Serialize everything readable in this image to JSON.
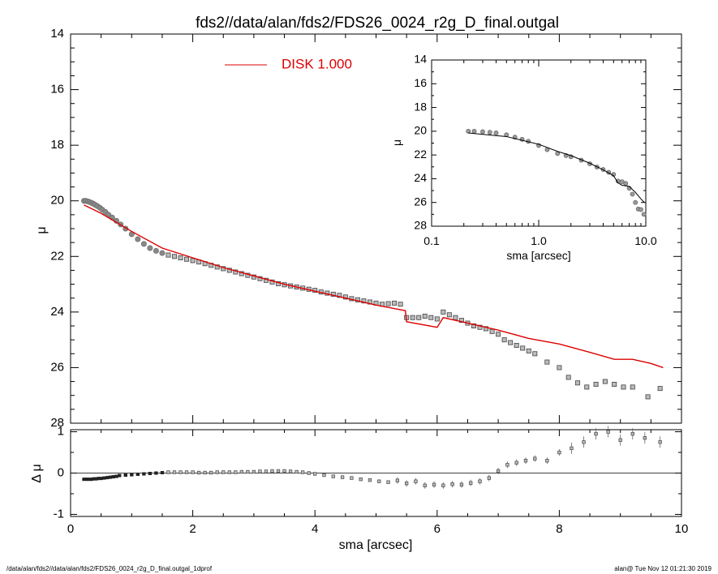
{
  "title": "fds2//data/alan/fds2/FDS26_0024_r2g_D_final.outgal",
  "footer_left": "/data/alan/fds2//data/alan/fds2/FDS26_0024_r2g_D_final.outgal_1dprof",
  "footer_right": "alan@  Tue Nov 12 01:21:30 2019",
  "colors": {
    "model": "#dd0000",
    "data": "#555555",
    "axes": "#000000"
  },
  "chart_data": [
    {
      "type": "scatter",
      "panel": "main",
      "xlabel": "",
      "ylabel": "μ",
      "xlim": [
        0,
        10
      ],
      "ylim": [
        28,
        14
      ],
      "y_inverted": true,
      "y_ticks": [
        14,
        16,
        18,
        20,
        22,
        24,
        26,
        28
      ],
      "legend": {
        "position": "top-center",
        "label": "DISK  1.000",
        "color": "#dd0000"
      },
      "series": [
        {
          "role": "observed",
          "x": [
            0.22,
            0.25,
            0.28,
            0.31,
            0.34,
            0.37,
            0.4,
            0.44,
            0.48,
            0.52,
            0.57,
            0.62,
            0.68,
            0.75,
            0.82,
            0.9,
            1.0,
            1.1,
            1.2,
            1.3,
            1.4,
            1.5,
            1.6,
            1.7,
            1.8,
            1.9,
            2.0,
            2.1,
            2.2,
            2.3,
            2.4,
            2.5,
            2.6,
            2.7,
            2.8,
            2.9,
            3.0,
            3.1,
            3.2,
            3.3,
            3.4,
            3.5,
            3.6,
            3.7,
            3.8,
            3.9,
            4.0,
            4.1,
            4.2,
            4.3,
            4.4,
            4.5,
            4.6,
            4.7,
            4.8,
            4.9,
            5.0,
            5.1,
            5.2,
            5.3,
            5.4,
            5.5,
            5.6,
            5.7,
            5.8,
            5.9,
            6.0,
            6.1,
            6.2,
            6.3,
            6.4,
            6.5,
            6.6,
            6.7,
            6.8,
            6.9,
            7.0,
            7.1,
            7.2,
            7.3,
            7.4,
            7.5,
            7.6,
            7.8,
            8.0,
            8.15,
            8.3,
            8.45,
            8.6,
            8.75,
            8.9,
            9.05,
            9.2,
            9.45,
            9.65
          ],
          "y": [
            20.0,
            20.0,
            20.02,
            20.04,
            20.07,
            20.1,
            20.14,
            20.19,
            20.25,
            20.32,
            20.4,
            20.5,
            20.6,
            20.72,
            20.85,
            21.0,
            21.2,
            21.38,
            21.55,
            21.7,
            21.8,
            21.88,
            21.95,
            22.0,
            22.05,
            22.1,
            22.15,
            22.2,
            22.26,
            22.32,
            22.38,
            22.44,
            22.5,
            22.56,
            22.62,
            22.68,
            22.74,
            22.8,
            22.86,
            22.92,
            22.98,
            23.02,
            23.06,
            23.1,
            23.14,
            23.18,
            23.22,
            23.28,
            23.32,
            23.36,
            23.4,
            23.46,
            23.52,
            23.56,
            23.6,
            23.64,
            23.68,
            23.72,
            23.7,
            23.68,
            23.72,
            24.2,
            24.2,
            24.2,
            24.15,
            24.2,
            24.25,
            24.0,
            24.1,
            24.2,
            24.3,
            24.4,
            24.5,
            24.55,
            24.6,
            24.7,
            24.8,
            25.0,
            25.1,
            25.2,
            25.3,
            25.4,
            25.5,
            25.8,
            26.0,
            26.35,
            26.55,
            26.7,
            26.6,
            26.5,
            26.6,
            26.7,
            26.7,
            27.05,
            26.75
          ]
        },
        {
          "role": "model",
          "name": "DISK",
          "x": [
            0.22,
            0.5,
            1.0,
            1.5,
            2.0,
            2.5,
            3.0,
            3.5,
            4.0,
            4.5,
            5.0,
            5.48,
            5.5,
            6.0,
            6.1,
            6.5,
            7.0,
            7.5,
            8.0,
            8.5,
            8.9,
            9.2,
            9.5,
            9.7
          ],
          "y": [
            20.15,
            20.45,
            21.1,
            21.7,
            22.05,
            22.4,
            22.7,
            23.0,
            23.25,
            23.5,
            23.75,
            23.95,
            24.35,
            24.55,
            24.2,
            24.4,
            24.65,
            24.95,
            25.15,
            25.45,
            25.7,
            25.7,
            25.85,
            26.0
          ]
        }
      ]
    },
    {
      "type": "scatter",
      "panel": "residual",
      "xlabel": "sma [arcsec]",
      "ylabel": "Δ μ",
      "xlim": [
        0,
        10
      ],
      "ylim": [
        -1.05,
        1.05
      ],
      "x_ticks": [
        0,
        2,
        4,
        6,
        8,
        10
      ],
      "y_ticks": [
        -1,
        0,
        1
      ],
      "reference_line": 0,
      "series": [
        {
          "role": "residual",
          "x": [
            0.22,
            0.26,
            0.3,
            0.34,
            0.38,
            0.42,
            0.46,
            0.5,
            0.55,
            0.6,
            0.65,
            0.7,
            0.75,
            0.8,
            0.9,
            1.0,
            1.1,
            1.2,
            1.3,
            1.4,
            1.5,
            1.6,
            1.7,
            1.8,
            1.9,
            2.0,
            2.1,
            2.2,
            2.3,
            2.4,
            2.5,
            2.6,
            2.7,
            2.8,
            2.9,
            3.0,
            3.1,
            3.2,
            3.3,
            3.4,
            3.5,
            3.6,
            3.7,
            3.8,
            3.9,
            4.0,
            4.15,
            4.3,
            4.45,
            4.6,
            4.75,
            4.9,
            5.05,
            5.2,
            5.35,
            5.5,
            5.65,
            5.8,
            5.95,
            6.1,
            6.25,
            6.4,
            6.55,
            6.7,
            6.85,
            7.0,
            7.15,
            7.3,
            7.45,
            7.6,
            7.8,
            8.0,
            8.2,
            8.4,
            8.6,
            8.8,
            9.0,
            9.2,
            9.4,
            9.65
          ],
          "y": [
            -0.15,
            -0.15,
            -0.15,
            -0.15,
            -0.14,
            -0.14,
            -0.13,
            -0.13,
            -0.12,
            -0.11,
            -0.1,
            -0.09,
            -0.08,
            -0.06,
            -0.05,
            -0.04,
            -0.03,
            -0.02,
            -0.01,
            0.0,
            0.01,
            0.02,
            0.02,
            0.02,
            0.02,
            0.02,
            0.01,
            0.01,
            0.01,
            0.02,
            0.02,
            0.02,
            0.02,
            0.03,
            0.03,
            0.03,
            0.04,
            0.04,
            0.05,
            0.05,
            0.05,
            0.04,
            0.03,
            0.02,
            0.0,
            -0.02,
            -0.05,
            -0.08,
            -0.1,
            -0.12,
            -0.15,
            -0.17,
            -0.2,
            -0.22,
            -0.18,
            -0.25,
            -0.2,
            -0.3,
            -0.28,
            -0.3,
            -0.27,
            -0.28,
            -0.24,
            -0.2,
            -0.12,
            0.05,
            0.2,
            0.25,
            0.3,
            0.35,
            0.3,
            0.5,
            0.6,
            0.75,
            0.95,
            1.0,
            0.8,
            0.95,
            0.85,
            0.75
          ]
        }
      ]
    },
    {
      "type": "scatter",
      "panel": "inset",
      "x_scale": "log",
      "xlabel": "sma [arcsec]",
      "ylabel": "μ",
      "xlim": [
        0.1,
        10.0
      ],
      "ylim": [
        28,
        14
      ],
      "y_inverted": true,
      "x_ticks": [
        "0.1",
        "1.0",
        "10.0"
      ],
      "y_ticks": [
        14,
        16,
        18,
        20,
        22,
        24,
        26,
        28
      ],
      "series": [
        {
          "role": "observed",
          "x": [
            0.22,
            0.25,
            0.3,
            0.35,
            0.4,
            0.5,
            0.6,
            0.7,
            0.8,
            1.0,
            1.2,
            1.5,
            1.8,
            2.0,
            2.5,
            3.0,
            3.5,
            4.0,
            4.5,
            5.0,
            5.5,
            6.0,
            6.5,
            7.0,
            7.5,
            8.0,
            8.5,
            9.0,
            9.6
          ],
          "y": [
            20.0,
            20.0,
            20.04,
            20.09,
            20.14,
            20.3,
            20.5,
            20.68,
            20.85,
            21.2,
            21.55,
            21.88,
            22.05,
            22.15,
            22.44,
            22.74,
            23.02,
            23.22,
            23.46,
            23.64,
            24.2,
            24.25,
            24.4,
            24.8,
            25.3,
            26.0,
            26.55,
            26.6,
            27.0
          ]
        },
        {
          "role": "model",
          "name": "DISK",
          "x": [
            0.22,
            0.5,
            1.0,
            1.5,
            2.0,
            3.0,
            4.0,
            5.0,
            5.5,
            6.0,
            7.0,
            8.0,
            9.0,
            9.7
          ],
          "y": [
            20.15,
            20.45,
            21.1,
            21.7,
            22.05,
            22.7,
            23.25,
            23.75,
            24.35,
            24.55,
            24.65,
            25.15,
            25.7,
            26.0
          ]
        }
      ]
    }
  ]
}
